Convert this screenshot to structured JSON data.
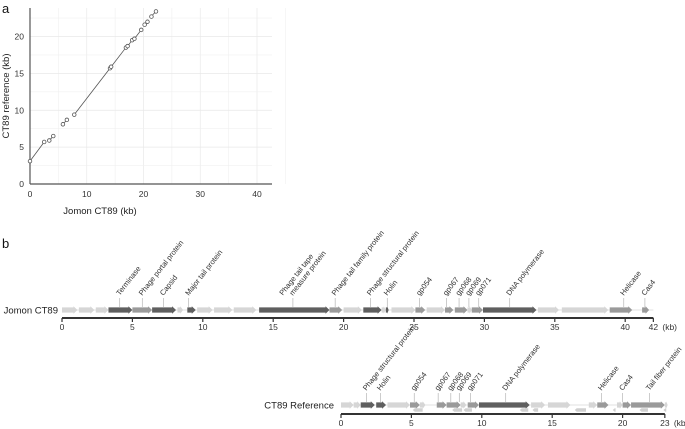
{
  "panels": {
    "a": "a",
    "b": "b"
  },
  "chart_data": [
    {
      "type": "scatter",
      "panel": "a",
      "title": "",
      "xlabel": "Jomon CT89 (kb)",
      "ylabel": "CT89 reference (kb)",
      "xlim": [
        0,
        42
      ],
      "ylim": [
        0,
        23.5
      ],
      "xticks": [
        0,
        10,
        20,
        30,
        40
      ],
      "yticks": [
        0,
        5,
        10,
        15,
        20
      ],
      "grid": true,
      "segments": [
        [
          [
            0.0,
            3.1
          ],
          [
            2.5,
            5.7
          ]
        ],
        [
          [
            3.4,
            5.9
          ],
          [
            4.1,
            6.5
          ]
        ],
        [
          [
            5.8,
            8.1
          ],
          [
            6.5,
            8.7
          ]
        ],
        [
          [
            7.8,
            9.4
          ],
          [
            14.2,
            15.8
          ]
        ],
        [
          [
            14.2,
            15.8
          ],
          [
            16.9,
            18.5
          ]
        ],
        [
          [
            16.9,
            18.5
          ],
          [
            17.2,
            18.7
          ]
        ],
        [
          [
            17.2,
            18.7
          ],
          [
            18.0,
            19.5
          ]
        ],
        [
          [
            18.0,
            19.5
          ],
          [
            18.4,
            19.7
          ]
        ],
        [
          [
            18.4,
            19.7
          ],
          [
            19.6,
            20.9
          ]
        ],
        [
          [
            20.2,
            21.6
          ],
          [
            20.7,
            22.0
          ]
        ],
        [
          [
            21.4,
            22.7
          ],
          [
            21.7,
            23.0
          ]
        ],
        [
          [
            21.7,
            23.0
          ],
          [
            22.2,
            23.4
          ]
        ]
      ],
      "points": [
        [
          0.0,
          3.1
        ],
        [
          2.5,
          5.7
        ],
        [
          3.4,
          5.9
        ],
        [
          4.1,
          6.5
        ],
        [
          5.8,
          8.1
        ],
        [
          6.5,
          8.7
        ],
        [
          7.8,
          9.4
        ],
        [
          14.1,
          15.7
        ],
        [
          14.3,
          15.9
        ],
        [
          16.9,
          18.5
        ],
        [
          17.2,
          18.7
        ],
        [
          18.0,
          19.5
        ],
        [
          18.4,
          19.7
        ],
        [
          19.6,
          20.9
        ],
        [
          20.2,
          21.6
        ],
        [
          20.7,
          22.0
        ],
        [
          21.4,
          22.7
        ],
        [
          22.2,
          23.4
        ]
      ]
    },
    {
      "type": "gene-map",
      "panel": "b",
      "xlabel_unit": "(kb)",
      "tracks": [
        {
          "name": "Jomon CT89",
          "length": 42,
          "ticks": [
            0,
            5,
            10,
            15,
            20,
            25,
            30,
            35,
            40,
            42
          ],
          "genes": [
            {
              "start": 0.0,
              "end": 1.1,
              "shade": "light"
            },
            {
              "start": 1.2,
              "end": 2.3,
              "shade": "light"
            },
            {
              "start": 2.4,
              "end": 3.3,
              "shade": "light"
            },
            {
              "start": 3.3,
              "end": 5.0,
              "shade": "dark",
              "label": "Terminase",
              "lx": 4.1
            },
            {
              "start": 5.0,
              "end": 6.4,
              "shade": "mid",
              "label": "Phage portal protein",
              "lx": 5.7
            },
            {
              "start": 6.4,
              "end": 8.1,
              "shade": "dark",
              "label": "Capsid",
              "lx": 7.2
            },
            {
              "start": 8.2,
              "end": 8.6,
              "shade": "light"
            },
            {
              "start": 8.9,
              "end": 9.5,
              "shade": "dark",
              "label": "Major tail protein",
              "lx": 9.0
            },
            {
              "start": 9.6,
              "end": 10.7,
              "shade": "light"
            },
            {
              "start": 10.8,
              "end": 12.1,
              "shade": "light"
            },
            {
              "start": 12.2,
              "end": 13.8,
              "shade": "light"
            },
            {
              "start": 14.0,
              "end": 19.0,
              "shade": "dark",
              "label": "Phage tail tape\nmeasure protein",
              "lx": 16.4
            },
            {
              "start": 19.0,
              "end": 19.9,
              "shade": "mid",
              "label": "Phage tail family protein",
              "lx": 19.4
            },
            {
              "start": 20.0,
              "end": 21.3,
              "shade": "light"
            },
            {
              "start": 21.4,
              "end": 22.7,
              "shade": "dark",
              "label": "Phage structural protein",
              "lx": 21.9
            },
            {
              "start": 22.7,
              "end": 23.0,
              "shade": "light"
            },
            {
              "start": 23.0,
              "end": 23.2,
              "shade": "dark",
              "label": "Holin",
              "lx": 23.1
            },
            {
              "start": 23.4,
              "end": 25.1,
              "shade": "light"
            },
            {
              "start": 25.1,
              "end": 25.8,
              "shade": "mid",
              "label": "gp054",
              "lx": 25.4
            },
            {
              "start": 25.9,
              "end": 27.2,
              "shade": "light"
            },
            {
              "start": 27.2,
              "end": 27.8,
              "shade": "mid",
              "label": "gp067",
              "lx": 27.3
            },
            {
              "start": 27.9,
              "end": 28.8,
              "shade": "mid",
              "label": "gp068",
              "lx": 28.2
            },
            {
              "start": 28.8,
              "end": 29.1,
              "shade": "light",
              "label": "gp069",
              "lx": 28.9
            },
            {
              "start": 29.1,
              "end": 29.9,
              "shade": "mid",
              "label": "gp071",
              "lx": 29.6
            },
            {
              "start": 29.9,
              "end": 33.7,
              "shade": "dark",
              "label": "DNA polymerase",
              "lx": 31.8
            },
            {
              "start": 33.8,
              "end": 35.3,
              "shade": "light"
            },
            {
              "start": 35.5,
              "end": 38.8,
              "shade": "light"
            },
            {
              "start": 38.9,
              "end": 40.5,
              "shade": "mid",
              "label": "Helicase",
              "lx": 39.9
            },
            {
              "start": 41.2,
              "end": 41.7,
              "shade": "mid",
              "label": "Cas4",
              "lx": 41.4
            }
          ]
        },
        {
          "name": "CT89 Reference",
          "length": 23,
          "ticks": [
            0,
            5,
            10,
            15,
            20,
            23
          ],
          "genes": [
            {
              "start": 0.0,
              "end": 0.9,
              "shade": "light"
            },
            {
              "start": 0.9,
              "end": 1.4,
              "shade": "light"
            },
            {
              "start": 1.4,
              "end": 2.4,
              "shade": "dark",
              "label": "Phage structural protein",
              "lx": 1.8
            },
            {
              "start": 2.5,
              "end": 3.2,
              "shade": "dark",
              "label": "Holin",
              "lx": 2.8
            },
            {
              "start": 3.3,
              "end": 4.9,
              "shade": "light"
            },
            {
              "start": 4.9,
              "end": 5.6,
              "shade": "mid",
              "label": "gp054",
              "lx": 5.2
            },
            {
              "start": 5.6,
              "end": 6.0,
              "shade": "light"
            },
            {
              "start": 6.8,
              "end": 7.5,
              "shade": "mid",
              "label": "gp067",
              "lx": 6.9
            },
            {
              "start": 7.5,
              "end": 8.5,
              "shade": "mid",
              "label": "gp068",
              "lx": 7.8
            },
            {
              "start": 8.5,
              "end": 8.9,
              "shade": "light",
              "label": "gp069",
              "lx": 8.4
            },
            {
              "start": 9.0,
              "end": 9.8,
              "shade": "mid",
              "label": "gp071",
              "lx": 9.2
            },
            {
              "start": 9.8,
              "end": 13.4,
              "shade": "dark",
              "label": "DNA polymerase",
              "lx": 11.7
            },
            {
              "start": 13.5,
              "end": 14.5,
              "shade": "light"
            },
            {
              "start": 14.7,
              "end": 16.3,
              "shade": "light"
            },
            {
              "start": 17.6,
              "end": 18.2,
              "shade": "light"
            },
            {
              "start": 18.2,
              "end": 19.0,
              "shade": "mid",
              "label": "Helicase",
              "lx": 18.5
            },
            {
              "start": 19.6,
              "end": 20.0,
              "shade": "light"
            },
            {
              "start": 20.0,
              "end": 20.6,
              "shade": "mid",
              "label": "Cas4",
              "lx": 20.0
            },
            {
              "start": 20.6,
              "end": 23.0,
              "shade": "mid",
              "label": "Tail fiber protein",
              "lx": 21.9
            },
            {
              "start": 23.0,
              "end": 23.2,
              "shade": "light"
            }
          ],
          "reverse_genes": [
            {
              "start": 5.1,
              "end": 5.8
            },
            {
              "start": 7.9,
              "end": 8.6
            },
            {
              "start": 8.7,
              "end": 9.3
            },
            {
              "start": 12.7,
              "end": 13.3
            },
            {
              "start": 13.6,
              "end": 14.0
            },
            {
              "start": 16.6,
              "end": 17.4
            },
            {
              "start": 19.3,
              "end": 19.5
            },
            {
              "start": 21.2,
              "end": 21.8
            },
            {
              "start": 22.9,
              "end": 23.1
            }
          ]
        }
      ]
    }
  ]
}
